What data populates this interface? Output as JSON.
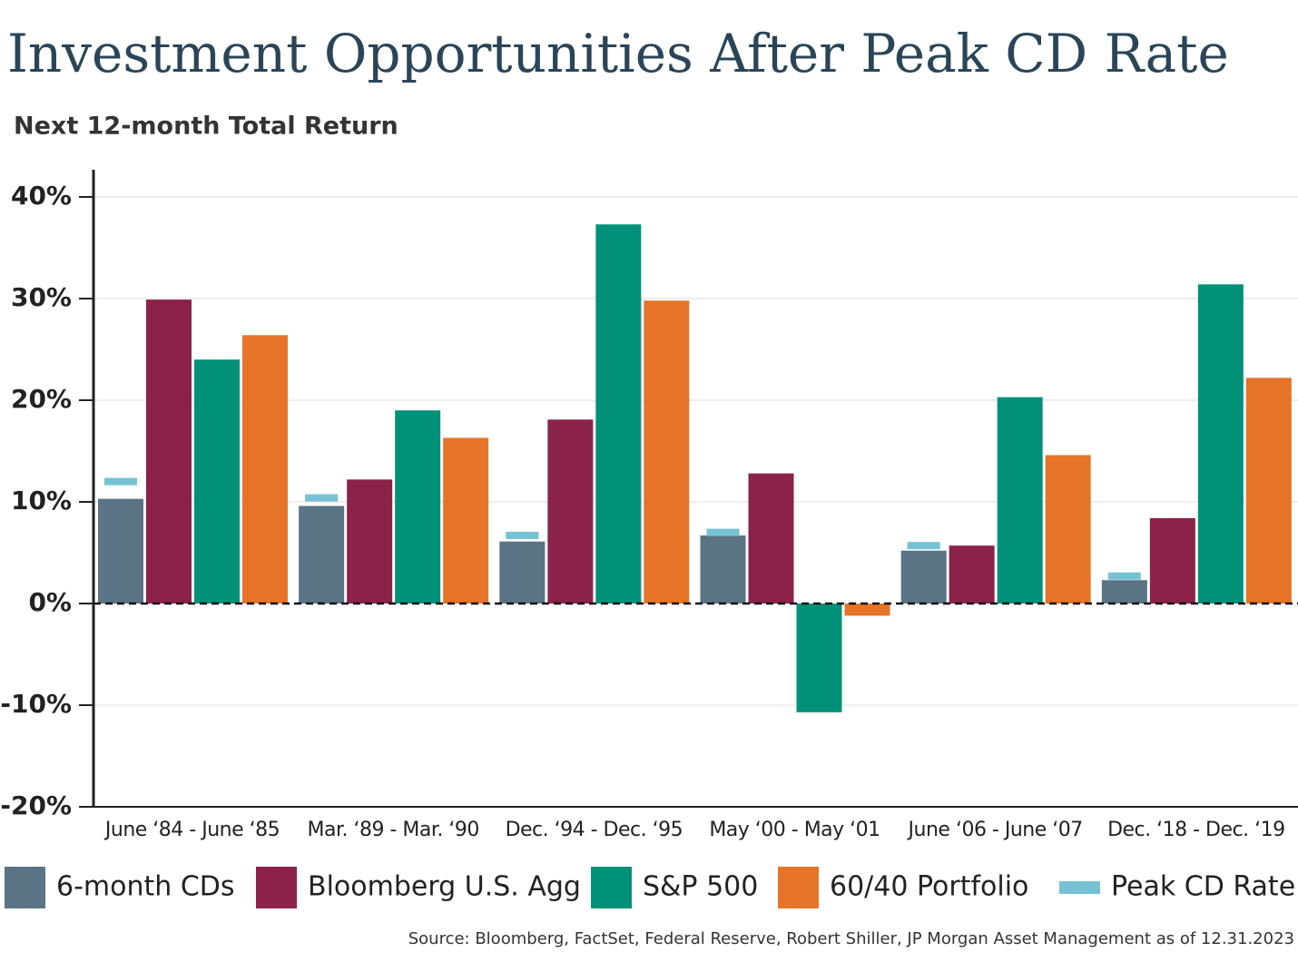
{
  "chart_data": {
    "type": "bar",
    "title": "Investment Opportunities After Peak CD Rate",
    "subtitle": "Next 12-month Total Return",
    "source": "Source: Bloomberg, FactSet, Federal Reserve, Robert Shiller, JP Morgan Asset Management as of 12.31.2023",
    "categories": [
      "June ‘84 - June ‘85",
      "Mar. ‘89 - Mar. ‘90",
      "Dec. ‘94 - Dec. ‘95",
      "May ‘00 - May ‘01",
      "June ‘06 - June ‘07",
      "Dec. ‘18 - Dec. ‘19"
    ],
    "series": [
      {
        "name": "6-month CDs",
        "color": "#5a7385",
        "values": [
          10.3,
          9.6,
          6.1,
          6.7,
          5.2,
          2.3
        ]
      },
      {
        "name": "Bloomberg U.S. Agg",
        "color": "#8b2249",
        "values": [
          29.9,
          12.2,
          18.1,
          12.8,
          5.7,
          8.4
        ]
      },
      {
        "name": "S&P 500",
        "color": "#009178",
        "values": [
          24.0,
          19.0,
          37.3,
          -10.7,
          20.3,
          31.4
        ]
      },
      {
        "name": "60/40 Portfolio",
        "color": "#e57429",
        "values": [
          26.4,
          16.3,
          29.8,
          -1.2,
          14.6,
          22.2
        ]
      },
      {
        "name": "Peak CD Rate",
        "color": "#74c2d4",
        "marker": "dash",
        "values": [
          12.0,
          10.4,
          6.7,
          7.0,
          5.7,
          2.7
        ]
      }
    ],
    "ylim": [
      -20,
      40
    ],
    "yticks": [
      {
        "value": -20,
        "label": "-20%"
      },
      {
        "value": -10,
        "label": "-10%"
      },
      {
        "value": 0,
        "label": "0%"
      },
      {
        "value": 10,
        "label": "10%"
      },
      {
        "value": 20,
        "label": "20%"
      },
      {
        "value": 30,
        "label": "30%"
      },
      {
        "value": 40,
        "label": "40%"
      }
    ],
    "grid": true
  }
}
